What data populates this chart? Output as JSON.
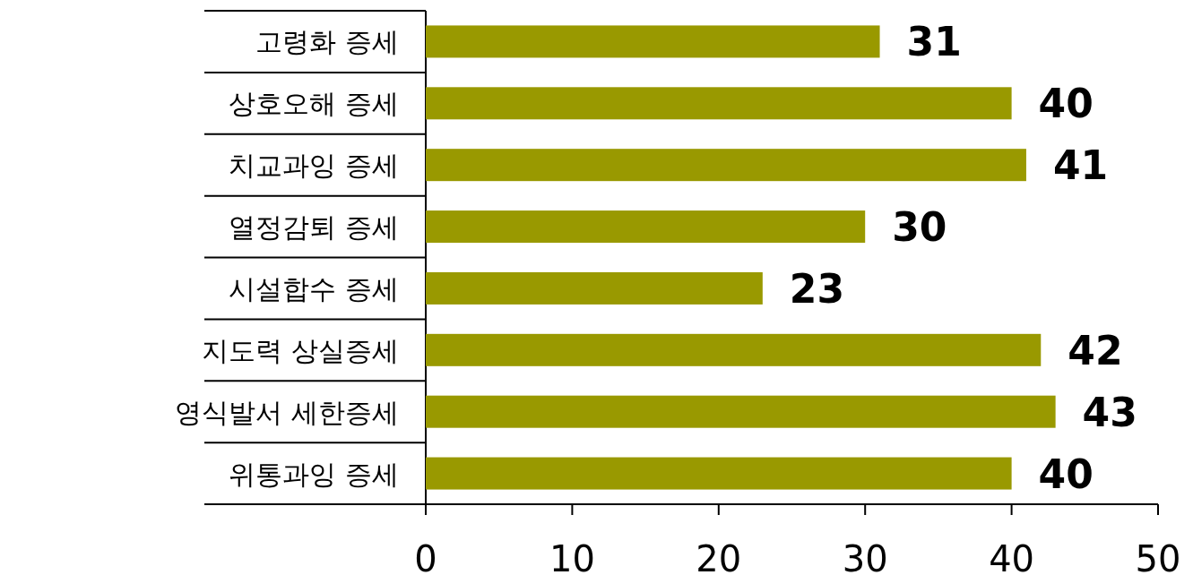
{
  "chart_data": {
    "type": "bar",
    "orientation": "horizontal",
    "categories": [
      "고령화 증세",
      "상호오해 증세",
      "치교과잉 증세",
      "열정감퇴 증세",
      "시설합수 증세",
      "지도력 상실증세",
      "영식발서 세한증세",
      "위통과잉 증세"
    ],
    "values": [
      31,
      40,
      41,
      30,
      23,
      42,
      43,
      40
    ],
    "color": "#999900",
    "xlim": [
      0,
      50
    ],
    "xticks": [
      0,
      10,
      20,
      30,
      40,
      50
    ],
    "data_labels": true
  }
}
